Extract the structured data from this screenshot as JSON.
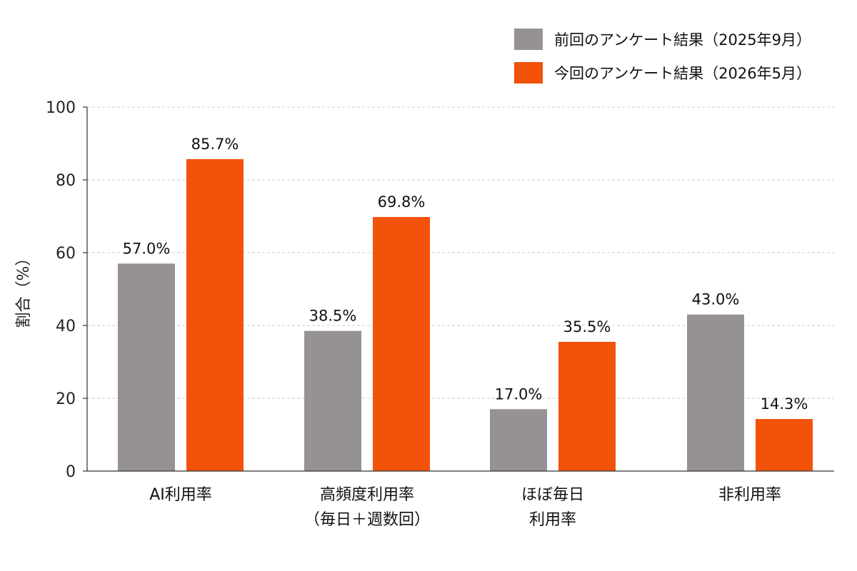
{
  "chart_data": {
    "type": "bar",
    "title": "",
    "xlabel": "",
    "ylabel": "割合（%）",
    "ylim": [
      0,
      100
    ],
    "yticks": [
      0,
      20,
      40,
      60,
      80,
      100
    ],
    "grid": true,
    "legend_position": "top-right",
    "categories": [
      [
        "AI利用率"
      ],
      [
        "高頻度利用率",
        "（毎日＋週数回）"
      ],
      [
        "ほぼ毎日",
        "利用率"
      ],
      [
        "非利用率"
      ]
    ],
    "series": [
      {
        "name": "前回のアンケート結果（2025年9月）",
        "color": "#959194",
        "values": [
          57.0,
          38.5,
          17.0,
          43.0
        ],
        "labels": [
          "57.0%",
          "38.5%",
          "17.0%",
          "43.0%"
        ]
      },
      {
        "name": "今回のアンケート結果（2026年5月）",
        "color": "#F2520A",
        "values": [
          85.7,
          69.8,
          35.5,
          14.3
        ],
        "labels": [
          "85.7%",
          "69.8%",
          "35.5%",
          "14.3%"
        ]
      }
    ]
  }
}
